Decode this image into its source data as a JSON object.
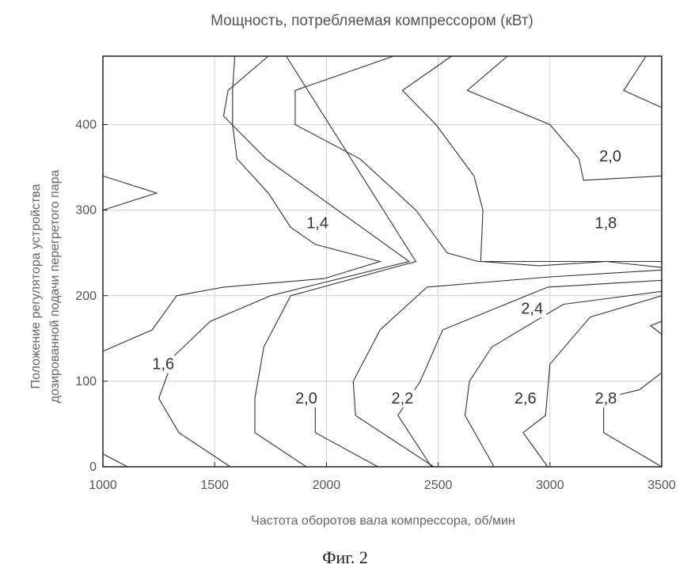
{
  "figure_caption": "Фиг. 2",
  "chart_data": {
    "type": "contour",
    "title": "Мощность, потребляемая компрессором (кВт)",
    "xlabel": "Частота оборотов вала компрессора, об/мин",
    "ylabel_lines": [
      "Положение регулятора устройства",
      "дозированной подачи перегретого пара"
    ],
    "xlim": [
      1000,
      3500
    ],
    "ylim": [
      0,
      480
    ],
    "xticks": [
      1000,
      1500,
      2000,
      2500,
      3000,
      3500
    ],
    "yticks": [
      0,
      100,
      200,
      300,
      400
    ],
    "xtick_labels": [
      "1000",
      "1500",
      "2000",
      "2500",
      "3000",
      "3500"
    ],
    "ytick_labels": [
      "0",
      "100",
      "200",
      "300",
      "400"
    ],
    "grid": true,
    "contours": [
      {
        "label": "1,4",
        "points": [
          [
            1000,
            340
          ],
          [
            1240,
            320
          ],
          [
            1000,
            300
          ]
        ]
      },
      {
        "label": "1,4",
        "points": [
          [
            1590,
            480
          ],
          [
            1580,
            440
          ],
          [
            1580,
            400
          ],
          [
            1600,
            360
          ],
          [
            1740,
            320
          ],
          [
            1840,
            280
          ],
          [
            1950,
            260
          ],
          [
            2240,
            240
          ],
          [
            1990,
            220
          ],
          [
            1540,
            210
          ],
          [
            1330,
            200
          ],
          [
            1220,
            160
          ],
          [
            1000,
            135
          ]
        ]
      },
      {
        "label": "1,6",
        "points": [
          [
            1000,
            15
          ],
          [
            1110,
            0
          ]
        ]
      },
      {
        "label": "1,6",
        "points": [
          [
            1740,
            480
          ],
          [
            1560,
            440
          ],
          [
            1540,
            410
          ],
          [
            1730,
            360
          ],
          [
            2050,
            300
          ],
          [
            2370,
            240
          ],
          [
            1750,
            200
          ],
          [
            1480,
            170
          ],
          [
            1320,
            130
          ],
          [
            1250,
            80
          ],
          [
            1340,
            40
          ],
          [
            1570,
            0
          ]
        ]
      },
      {
        "label": "1,8",
        "points": [
          [
            2300,
            480
          ],
          [
            1860,
            440
          ],
          [
            1860,
            400
          ],
          [
            2150,
            360
          ],
          [
            2400,
            300
          ],
          [
            2540,
            250
          ],
          [
            2680,
            240
          ],
          [
            3000,
            240
          ],
          [
            3250,
            240
          ],
          [
            3500,
            233
          ]
        ]
      },
      {
        "label": "1,8",
        "points": [
          [
            2560,
            480
          ],
          [
            2340,
            440
          ],
          [
            2490,
            400
          ],
          [
            2660,
            340
          ],
          [
            2700,
            300
          ],
          [
            2690,
            240
          ],
          [
            2950,
            235
          ],
          [
            3250,
            240
          ],
          [
            3500,
            240
          ]
        ]
      },
      {
        "label": "2,0",
        "points": [
          [
            2810,
            480
          ],
          [
            2630,
            440
          ],
          [
            3000,
            400
          ],
          [
            3130,
            360
          ],
          [
            3150,
            335
          ],
          [
            3500,
            340
          ]
        ]
      },
      {
        "label": "2,0",
        "points": [
          [
            3430,
            480
          ],
          [
            3330,
            440
          ],
          [
            3500,
            420
          ]
        ]
      },
      {
        "label": "2,0",
        "points": [
          [
            1820,
            480
          ],
          [
            2400,
            240
          ],
          [
            1840,
            200
          ],
          [
            1720,
            140
          ],
          [
            1680,
            80
          ],
          [
            1680,
            40
          ],
          [
            1910,
            0
          ]
        ]
      },
      {
        "label": "2,2",
        "points": [
          [
            1950,
            80
          ],
          [
            1950,
            40
          ],
          [
            2230,
            0
          ]
        ]
      },
      {
        "label": "2,2",
        "points": [
          [
            3500,
            230
          ],
          [
            3000,
            222
          ],
          [
            2450,
            210
          ],
          [
            2240,
            160
          ],
          [
            2120,
            100
          ],
          [
            2130,
            60
          ],
          [
            2480,
            0
          ]
        ]
      },
      {
        "label": "2,4",
        "points": [
          [
            3500,
            218
          ],
          [
            2990,
            210
          ],
          [
            2520,
            160
          ],
          [
            2420,
            100
          ],
          [
            2320,
            60
          ],
          [
            2470,
            0
          ]
        ]
      },
      {
        "label": "2,6",
        "points": [
          [
            3500,
            205
          ],
          [
            3060,
            190
          ],
          [
            2740,
            140
          ],
          [
            2640,
            100
          ],
          [
            2620,
            60
          ],
          [
            2750,
            0
          ]
        ]
      },
      {
        "label": "2,8",
        "points": [
          [
            3500,
            200
          ],
          [
            3180,
            175
          ],
          [
            3000,
            120
          ],
          [
            2980,
            60
          ],
          [
            2880,
            40
          ],
          [
            2990,
            0
          ]
        ]
      },
      {
        "label": "2,8",
        "points": [
          [
            3500,
            155
          ],
          [
            3450,
            165
          ],
          [
            3500,
            170
          ]
        ]
      },
      {
        "label": "2,8",
        "points": [
          [
            3500,
            110
          ],
          [
            3400,
            90
          ],
          [
            3240,
            80
          ],
          [
            3240,
            40
          ],
          [
            3500,
            0
          ]
        ]
      }
    ],
    "contour_labels": [
      {
        "text": "2,0",
        "x": 3270,
        "y": 358
      },
      {
        "text": "1,4",
        "x": 1960,
        "y": 280
      },
      {
        "text": "1,8",
        "x": 3250,
        "y": 280
      },
      {
        "text": "2,4",
        "x": 2920,
        "y": 180
      },
      {
        "text": "1,6",
        "x": 1270,
        "y": 115
      },
      {
        "text": "2,0",
        "x": 1910,
        "y": 75
      },
      {
        "text": "2,2",
        "x": 2340,
        "y": 75
      },
      {
        "text": "2,6",
        "x": 2890,
        "y": 75
      },
      {
        "text": "2,8",
        "x": 3250,
        "y": 75
      }
    ]
  }
}
